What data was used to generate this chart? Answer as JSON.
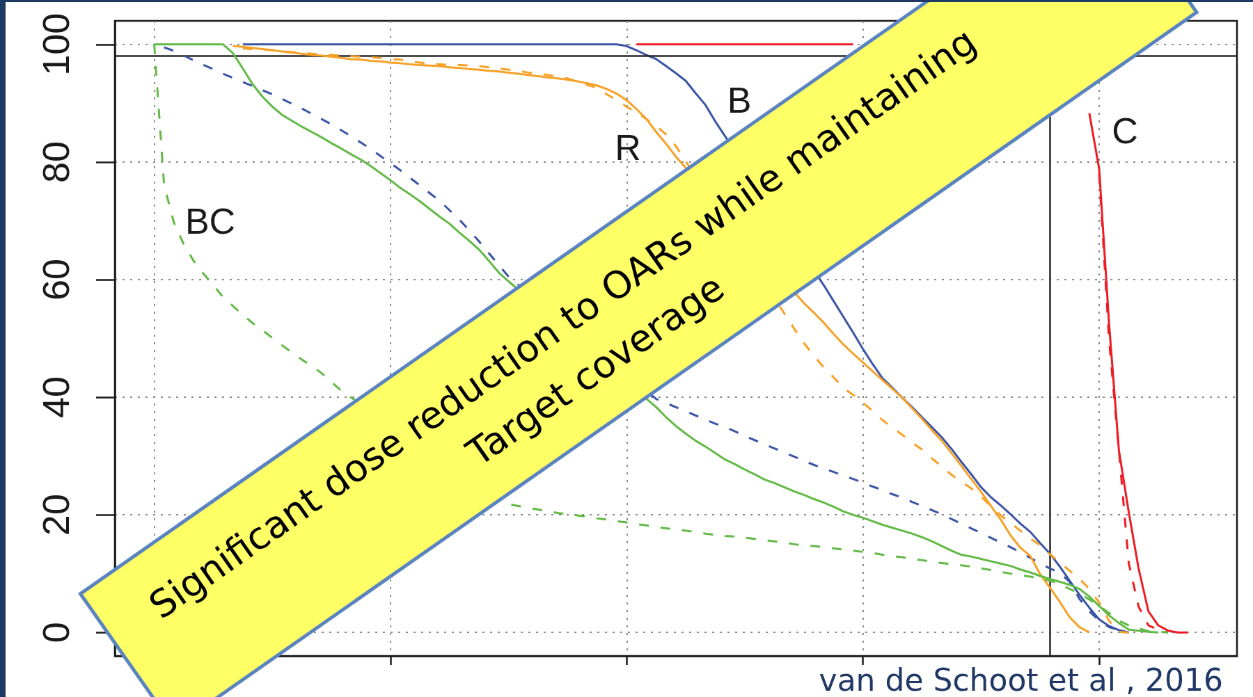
{
  "chart_data": {
    "type": "line",
    "categories": [
      null,
      null,
      null,
      null,
      null,
      null,
      null,
      null,
      null,
      null,
      null,
      null,
      null,
      null,
      null,
      null,
      null,
      null,
      null,
      null,
      null,
      null,
      null,
      null,
      null,
      null,
      null,
      null,
      null,
      null,
      null,
      null,
      null,
      null,
      null,
      null,
      null,
      null,
      null,
      null,
      null,
      null,
      null,
      null,
      null,
      null,
      null,
      null,
      null,
      null,
      null,
      null,
      null,
      null,
      null,
      null,
      null,
      null,
      null,
      null,
      null,
      null,
      null,
      null,
      null,
      null,
      null,
      null,
      null,
      null,
      null,
      null,
      null,
      null,
      null,
      null,
      null,
      null,
      null,
      null,
      null,
      null,
      null,
      null,
      null,
      null,
      null,
      null,
      null,
      null,
      null,
      null,
      null,
      null,
      null,
      null,
      null,
      null,
      null,
      null,
      null,
      null,
      null,
      null,
      null,
      null,
      null,
      null,
      null,
      null,
      null,
      null,
      null,
      null,
      null
    ],
    "series": [
      {
        "color": "#ed1c24",
        "line_style": "dashed",
        "values": [
          null,
          null,
          null,
          null,
          null,
          null,
          null,
          null,
          null,
          null,
          null,
          null,
          null,
          null,
          null,
          null,
          null,
          null,
          null,
          null,
          null,
          null,
          null,
          null,
          null,
          null,
          null,
          null,
          null,
          null,
          null,
          null,
          null,
          null,
          null,
          null,
          null,
          null,
          null,
          null,
          null,
          null,
          null,
          null,
          null,
          null,
          null,
          null,
          null,
          null,
          null,
          null,
          null,
          null,
          null,
          null,
          null,
          null,
          null,
          null,
          null,
          null,
          null,
          null,
          null,
          null,
          null,
          null,
          null,
          null,
          null,
          null,
          null,
          null,
          null,
          null,
          null,
          null,
          null,
          null,
          null,
          null,
          null,
          null,
          null,
          null,
          null,
          null,
          null,
          null,
          null,
          null,
          null,
          null,
          null,
          null,
          null,
          null,
          null,
          null,
          78.0,
          49.9,
          31.1,
          11.8,
          4.4,
          1.2,
          0.5,
          0,
          null,
          null,
          null,
          null,
          null,
          null,
          null
        ]
      },
      {
        "name": "C",
        "color": "#ed1c24",
        "line_style": "solid",
        "values": [
          null,
          null,
          null,
          null,
          null,
          null,
          null,
          null,
          null,
          null,
          null,
          null,
          null,
          null,
          null,
          null,
          null,
          null,
          null,
          null,
          null,
          null,
          null,
          null,
          null,
          null,
          null,
          null,
          null,
          null,
          null,
          null,
          null,
          null,
          null,
          null,
          null,
          null,
          null,
          null,
          null,
          null,
          null,
          null,
          null,
          null,
          null,
          null,
          null,
          null,
          null,
          null,
          null,
          100,
          100,
          100,
          100,
          100,
          100,
          100,
          100,
          100,
          100,
          100,
          100,
          100,
          100,
          100,
          100,
          100,
          100,
          100,
          100,
          100,
          100,
          100,
          null,
          null,
          null,
          null,
          null,
          null,
          null,
          null,
          null,
          null,
          null,
          null,
          null,
          null,
          null,
          null,
          null,
          null,
          null,
          null,
          null,
          null,
          null,
          88.3,
          78.8,
          52.6,
          31.0,
          20.5,
          10.9,
          3.6,
          1.2,
          0.3,
          0,
          0,
          null,
          null,
          null,
          null,
          null
        ]
      },
      {
        "name": "B",
        "color": "#3b54a5",
        "line_style": "solid",
        "values": [
          null,
          null,
          null,
          null,
          null,
          null,
          null,
          null,
          null,
          null,
          null,
          null,
          null,
          100,
          100,
          100,
          100,
          100,
          100,
          100,
          100,
          100,
          100,
          100,
          100,
          100,
          100,
          100,
          100,
          100,
          100,
          100,
          100,
          100,
          100,
          100,
          100,
          100,
          100,
          100,
          100,
          100,
          100,
          100,
          100,
          100,
          100,
          100,
          100,
          100,
          100,
          100,
          99.7,
          99.0,
          98.2,
          97.5,
          96.3,
          95.1,
          93.8,
          91.7,
          89.7,
          86.9,
          null,
          null,
          null,
          null,
          null,
          null,
          null,
          null,
          null,
          null,
          59.1,
          56.4,
          53.7,
          51.0,
          48.2,
          45.6,
          43.2,
          41.6,
          39.9,
          38.3,
          36.6,
          34.9,
          33.2,
          31.2,
          29.0,
          26.9,
          24.7,
          23.0,
          21.6,
          20.1,
          18.5,
          17.1,
          15.2,
          13.4,
          11.2,
          8.8,
          6.4,
          4.2,
          2.2,
          1.1,
          0.4,
          0,
          null,
          null,
          null,
          null,
          null,
          null,
          null,
          null,
          null,
          null,
          null
        ]
      },
      {
        "color": "#3b54a5",
        "line_style": "dashed",
        "values": [
          null,
          null,
          null,
          null,
          null,
          99.5,
          98.9,
          98.1,
          97.3,
          96.5,
          95.8,
          95.0,
          94.3,
          93.6,
          92.9,
          92.2,
          91.5,
          90.7,
          89.9,
          89.1,
          88.2,
          87.3,
          86.4,
          85.4,
          84.4,
          83.3,
          82.2,
          81.0,
          79.8,
          78.6,
          77.3,
          76.0,
          74.7,
          73.4,
          71.8,
          70.2,
          68.4,
          66.5,
          64.5,
          62.5,
          60.5,
          null,
          null,
          null,
          null,
          null,
          null,
          null,
          null,
          null,
          null,
          null,
          null,
          null,
          null,
          39.7,
          39.0,
          38.3,
          37.6,
          36.9,
          36.2,
          35.5,
          34.9,
          34.2,
          33.4,
          32.7,
          32.0,
          31.3,
          30.6,
          29.9,
          29.2,
          28.5,
          27.9,
          27.3,
          26.7,
          26.1,
          25.5,
          24.8,
          24.2,
          23.5,
          22.9,
          22.2,
          21.5,
          20.8,
          20.1,
          19.3,
          18.5,
          17.7,
          16.9,
          16.1,
          15.3,
          14.5,
          13.6,
          12.7,
          11.7,
          10.9,
          10.1,
          8.6,
          5.7,
          3.6,
          2.0,
          0.9,
          0.4,
          0,
          null,
          null,
          null,
          null,
          null,
          null,
          null,
          null,
          null,
          null,
          null
        ]
      },
      {
        "name": "R",
        "color": "#f7a128",
        "line_style": "solid",
        "values": [
          null,
          null,
          null,
          null,
          null,
          null,
          null,
          null,
          null,
          null,
          null,
          null,
          99.7,
          99.6,
          99.4,
          99.2,
          99.0,
          98.8,
          98.6,
          98.4,
          98.2,
          98.1,
          97.9,
          97.7,
          97.5,
          97.4,
          97.2,
          97.1,
          96.9,
          96.8,
          96.6,
          96.5,
          96.4,
          96.3,
          96.1,
          96.0,
          95.8,
          95.7,
          95.5,
          95.4,
          95.2,
          95.0,
          94.8,
          94.6,
          94.4,
          94.2,
          94.0,
          93.7,
          93.4,
          93.0,
          92.4,
          91.6,
          90.5,
          89.0,
          87.3,
          85.1,
          83.1,
          80.9,
          null,
          null,
          null,
          null,
          null,
          null,
          null,
          null,
          null,
          null,
          null,
          null,
          56.0,
          54.4,
          52.7,
          50.8,
          49.0,
          47.4,
          45.9,
          44.4,
          42.9,
          41.4,
          39.9,
          38.1,
          36.3,
          34.4,
          32.6,
          30.5,
          28.3,
          26.1,
          23.9,
          21.5,
          19.2,
          16.5,
          14.4,
          13.0,
          9.9,
          7.6,
          5.2,
          2.6,
          0.9,
          0,
          null,
          null,
          null,
          null,
          null,
          null,
          null,
          null,
          null,
          null,
          null,
          null,
          null,
          null,
          null
        ]
      },
      {
        "color": "#f7a128",
        "line_style": "dashed",
        "values": [
          null,
          null,
          null,
          null,
          null,
          null,
          null,
          null,
          null,
          null,
          null,
          null,
          null,
          99.3,
          99.2,
          99.1,
          99.0,
          98.8,
          98.7,
          98.6,
          98.4,
          98.3,
          98.2,
          98.1,
          98.0,
          97.9,
          97.8,
          97.7,
          97.5,
          97.4,
          97.1,
          96.9,
          96.7,
          96.6,
          96.5,
          96.5,
          96.4,
          96.3,
          96.1,
          95.9,
          95.7,
          95.5,
          95.2,
          95.0,
          94.8,
          94.5,
          94.2,
          93.7,
          93.1,
          92.6,
          91.5,
          90.5,
          89.4,
          88.4,
          87.3,
          86.1,
          84.7,
          82.7,
          null,
          null,
          null,
          null,
          null,
          null,
          null,
          null,
          null,
          null,
          null,
          51.7,
          49.2,
          47.1,
          45.1,
          43.4,
          41.6,
          40.4,
          39.1,
          37.6,
          36.1,
          34.8,
          33.6,
          32.3,
          31.1,
          29.6,
          28.2,
          26.8,
          25.6,
          24.5,
          23.1,
          21.5,
          19.9,
          18.6,
          17.3,
          16.0,
          14.8,
          13.3,
          11.9,
          10.5,
          9.1,
          7.4,
          5.1,
          2.0,
          0.1,
          0,
          null,
          null,
          null,
          null,
          null,
          null,
          null,
          null,
          null,
          null,
          null
        ]
      },
      {
        "color": "#62b946",
        "line_style": "solid",
        "values": [
          null,
          null,
          null,
          null,
          100,
          100,
          100,
          100,
          100,
          100,
          100,
          100,
          98.5,
          95.9,
          93.2,
          91.1,
          89.4,
          88.0,
          87.0,
          86.0,
          85.1,
          84.2,
          83.2,
          82.3,
          81.3,
          80.4,
          79.3,
          78.1,
          76.9,
          75.6,
          74.5,
          73.3,
          72.0,
          70.7,
          69.5,
          68.0,
          66.6,
          65.1,
          63.2,
          61.2,
          59.7,
          null,
          null,
          null,
          null,
          null,
          null,
          null,
          null,
          null,
          null,
          null,
          null,
          null,
          null,
          38.3,
          36.6,
          35.1,
          33.8,
          32.6,
          31.6,
          30.5,
          29.4,
          28.6,
          27.7,
          26.9,
          26.0,
          25.4,
          24.7,
          24.0,
          23.4,
          22.7,
          22.1,
          21.4,
          20.6,
          20.0,
          19.5,
          18.9,
          18.3,
          17.8,
          17.3,
          16.8,
          16.2,
          15.5,
          14.7,
          13.9,
          13.2,
          12.9,
          12.5,
          12.1,
          11.7,
          11.3,
          10.7,
          10.2,
          9.6,
          9.1,
          8.6,
          8.1,
          7.4,
          6.1,
          4.5,
          2.9,
          1.6,
          0.5,
          0.3,
          0.1,
          0,
          null,
          null,
          null,
          null,
          null,
          null,
          null,
          null
        ]
      },
      {
        "name": "BC",
        "color": "#62b946",
        "line_style": "dashed",
        "values": [
          null,
          null,
          null,
          null,
          100,
          76.1,
          69.7,
          66.0,
          63.2,
          61.0,
          59.1,
          57.0,
          55.5,
          54.0,
          52.6,
          51.4,
          50.1,
          48.8,
          47.6,
          46.4,
          45.3,
          44.1,
          42.6,
          41.1,
          null,
          null,
          null,
          null,
          null,
          null,
          null,
          null,
          null,
          null,
          null,
          null,
          null,
          null,
          null,
          null,
          21.8,
          21.5,
          21.2,
          20.9,
          20.6,
          20.3,
          20.1,
          19.9,
          19.7,
          19.4,
          19.2,
          18.9,
          18.7,
          18.4,
          18.2,
          17.9,
          17.7,
          17.5,
          17.3,
          17.1,
          16.8,
          16.6,
          16.4,
          16.3,
          16.1,
          15.9,
          15.7,
          15.5,
          15.3,
          15.0,
          14.8,
          14.7,
          14.5,
          14.3,
          14.1,
          13.9,
          13.7,
          13.5,
          13.2,
          13.0,
          12.8,
          12.5,
          12.3,
          12.0,
          11.8,
          11.6,
          11.4,
          11.2,
          10.9,
          10.6,
          10.3,
          10.0,
          9.7,
          9.5,
          9.1,
          8.8,
          8.2,
          7.4,
          6.6,
          5.6,
          4.5,
          3.3,
          2.0,
          1.2,
          0.7,
          0.2,
          0.1,
          0,
          null,
          null,
          null,
          null,
          null,
          null,
          null
        ]
      }
    ],
    "ylim": [
      -4,
      104
    ],
    "yticks": [
      0,
      20,
      40,
      60,
      80,
      100
    ],
    "tick_labels": "y",
    "grid": true,
    "marker": "none",
    "ref_lines": [
      {
        "axis": "y",
        "value": 98,
        "color": "#262626"
      }
    ],
    "annotations": [
      "Significant dose reduction to OARs while maintaining",
      "Target coverage",
      "van de Schoot et al , 2016"
    ]
  }
}
